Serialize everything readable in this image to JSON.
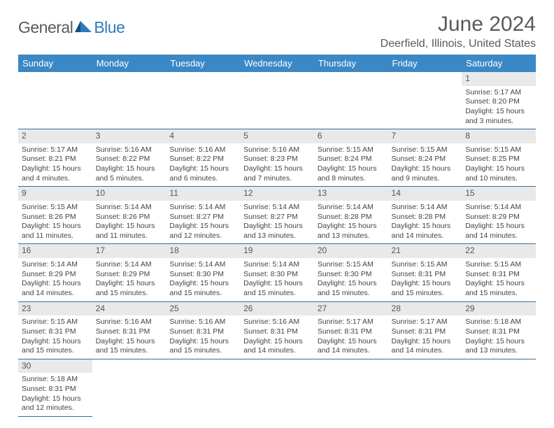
{
  "brand": {
    "general": "General",
    "blue": "Blue"
  },
  "title": "June 2024",
  "location": "Deerfield, Illinois, United States",
  "day_headers": [
    "Sunday",
    "Monday",
    "Tuesday",
    "Wednesday",
    "Thursday",
    "Friday",
    "Saturday"
  ],
  "colors": {
    "header_bg": "#3a88c6",
    "rule": "#2f6fa8",
    "daynum_bg": "#e9e9e9",
    "text": "#444",
    "logo_blue": "#2f7bbf",
    "logo_gray": "#5a5a5a"
  },
  "weeks": [
    [
      null,
      null,
      null,
      null,
      null,
      null,
      {
        "n": "1",
        "sr": "Sunrise: 5:17 AM",
        "ss": "Sunset: 8:20 PM",
        "dl": "Daylight: 15 hours and 3 minutes."
      }
    ],
    [
      {
        "n": "2",
        "sr": "Sunrise: 5:17 AM",
        "ss": "Sunset: 8:21 PM",
        "dl": "Daylight: 15 hours and 4 minutes."
      },
      {
        "n": "3",
        "sr": "Sunrise: 5:16 AM",
        "ss": "Sunset: 8:22 PM",
        "dl": "Daylight: 15 hours and 5 minutes."
      },
      {
        "n": "4",
        "sr": "Sunrise: 5:16 AM",
        "ss": "Sunset: 8:22 PM",
        "dl": "Daylight: 15 hours and 6 minutes."
      },
      {
        "n": "5",
        "sr": "Sunrise: 5:16 AM",
        "ss": "Sunset: 8:23 PM",
        "dl": "Daylight: 15 hours and 7 minutes."
      },
      {
        "n": "6",
        "sr": "Sunrise: 5:15 AM",
        "ss": "Sunset: 8:24 PM",
        "dl": "Daylight: 15 hours and 8 minutes."
      },
      {
        "n": "7",
        "sr": "Sunrise: 5:15 AM",
        "ss": "Sunset: 8:24 PM",
        "dl": "Daylight: 15 hours and 9 minutes."
      },
      {
        "n": "8",
        "sr": "Sunrise: 5:15 AM",
        "ss": "Sunset: 8:25 PM",
        "dl": "Daylight: 15 hours and 10 minutes."
      }
    ],
    [
      {
        "n": "9",
        "sr": "Sunrise: 5:15 AM",
        "ss": "Sunset: 8:26 PM",
        "dl": "Daylight: 15 hours and 11 minutes."
      },
      {
        "n": "10",
        "sr": "Sunrise: 5:14 AM",
        "ss": "Sunset: 8:26 PM",
        "dl": "Daylight: 15 hours and 11 minutes."
      },
      {
        "n": "11",
        "sr": "Sunrise: 5:14 AM",
        "ss": "Sunset: 8:27 PM",
        "dl": "Daylight: 15 hours and 12 minutes."
      },
      {
        "n": "12",
        "sr": "Sunrise: 5:14 AM",
        "ss": "Sunset: 8:27 PM",
        "dl": "Daylight: 15 hours and 13 minutes."
      },
      {
        "n": "13",
        "sr": "Sunrise: 5:14 AM",
        "ss": "Sunset: 8:28 PM",
        "dl": "Daylight: 15 hours and 13 minutes."
      },
      {
        "n": "14",
        "sr": "Sunrise: 5:14 AM",
        "ss": "Sunset: 8:28 PM",
        "dl": "Daylight: 15 hours and 14 minutes."
      },
      {
        "n": "15",
        "sr": "Sunrise: 5:14 AM",
        "ss": "Sunset: 8:29 PM",
        "dl": "Daylight: 15 hours and 14 minutes."
      }
    ],
    [
      {
        "n": "16",
        "sr": "Sunrise: 5:14 AM",
        "ss": "Sunset: 8:29 PM",
        "dl": "Daylight: 15 hours and 14 minutes."
      },
      {
        "n": "17",
        "sr": "Sunrise: 5:14 AM",
        "ss": "Sunset: 8:29 PM",
        "dl": "Daylight: 15 hours and 15 minutes."
      },
      {
        "n": "18",
        "sr": "Sunrise: 5:14 AM",
        "ss": "Sunset: 8:30 PM",
        "dl": "Daylight: 15 hours and 15 minutes."
      },
      {
        "n": "19",
        "sr": "Sunrise: 5:14 AM",
        "ss": "Sunset: 8:30 PM",
        "dl": "Daylight: 15 hours and 15 minutes."
      },
      {
        "n": "20",
        "sr": "Sunrise: 5:15 AM",
        "ss": "Sunset: 8:30 PM",
        "dl": "Daylight: 15 hours and 15 minutes."
      },
      {
        "n": "21",
        "sr": "Sunrise: 5:15 AM",
        "ss": "Sunset: 8:31 PM",
        "dl": "Daylight: 15 hours and 15 minutes."
      },
      {
        "n": "22",
        "sr": "Sunrise: 5:15 AM",
        "ss": "Sunset: 8:31 PM",
        "dl": "Daylight: 15 hours and 15 minutes."
      }
    ],
    [
      {
        "n": "23",
        "sr": "Sunrise: 5:15 AM",
        "ss": "Sunset: 8:31 PM",
        "dl": "Daylight: 15 hours and 15 minutes."
      },
      {
        "n": "24",
        "sr": "Sunrise: 5:16 AM",
        "ss": "Sunset: 8:31 PM",
        "dl": "Daylight: 15 hours and 15 minutes."
      },
      {
        "n": "25",
        "sr": "Sunrise: 5:16 AM",
        "ss": "Sunset: 8:31 PM",
        "dl": "Daylight: 15 hours and 15 minutes."
      },
      {
        "n": "26",
        "sr": "Sunrise: 5:16 AM",
        "ss": "Sunset: 8:31 PM",
        "dl": "Daylight: 15 hours and 14 minutes."
      },
      {
        "n": "27",
        "sr": "Sunrise: 5:17 AM",
        "ss": "Sunset: 8:31 PM",
        "dl": "Daylight: 15 hours and 14 minutes."
      },
      {
        "n": "28",
        "sr": "Sunrise: 5:17 AM",
        "ss": "Sunset: 8:31 PM",
        "dl": "Daylight: 15 hours and 14 minutes."
      },
      {
        "n": "29",
        "sr": "Sunrise: 5:18 AM",
        "ss": "Sunset: 8:31 PM",
        "dl": "Daylight: 15 hours and 13 minutes."
      }
    ],
    [
      {
        "n": "30",
        "sr": "Sunrise: 5:18 AM",
        "ss": "Sunset: 8:31 PM",
        "dl": "Daylight: 15 hours and 12 minutes."
      },
      null,
      null,
      null,
      null,
      null,
      null
    ]
  ]
}
